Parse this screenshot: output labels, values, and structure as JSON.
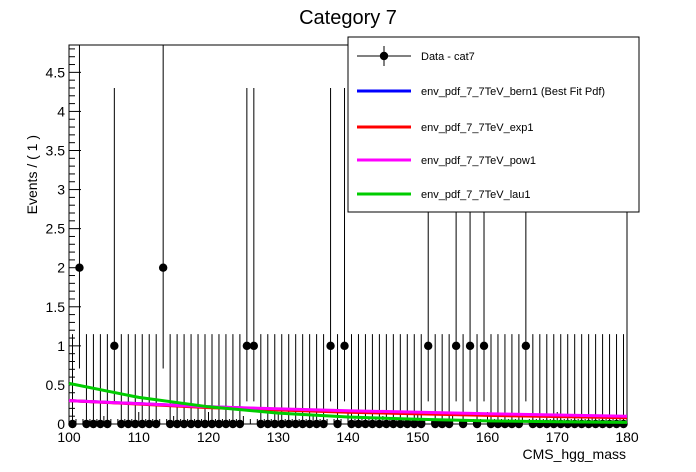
{
  "chart_data": {
    "type": "scatter",
    "title": "Category 7",
    "xlabel": "CMS_hgg_mass",
    "ylabel": "Events / ( 1 )",
    "xlim": [
      100,
      180
    ],
    "ylim": [
      0,
      4.85
    ],
    "x_ticks": [
      100,
      110,
      120,
      130,
      140,
      150,
      160,
      170,
      180
    ],
    "x_tick_labels": [
      "100",
      "110",
      "120",
      "130",
      "140",
      "150",
      "160",
      "170",
      "180"
    ],
    "y_ticks": [
      0,
      0.5,
      1,
      1.5,
      2,
      2.5,
      3,
      3.5,
      4,
      4.5
    ],
    "y_tick_labels": [
      "0",
      "0.5",
      "1",
      "1.5",
      "2",
      "2.5",
      "3",
      "3.5",
      "4",
      "4.5"
    ],
    "legend_position": "top-right",
    "data_series": {
      "name": "Data - cat7",
      "color": "#000000",
      "bin_width": 1,
      "x": [
        100.5,
        101.5,
        102.5,
        103.5,
        104.5,
        105.5,
        106.5,
        107.5,
        108.5,
        109.5,
        110.5,
        111.5,
        112.5,
        113.5,
        114.5,
        115.5,
        116.5,
        117.5,
        118.5,
        119.5,
        120.5,
        121.5,
        122.5,
        123.5,
        124.5,
        125.5,
        126.5,
        127.5,
        128.5,
        129.5,
        130.5,
        131.5,
        132.5,
        133.5,
        134.5,
        135.5,
        136.5,
        137.5,
        138.5,
        139.5,
        140.5,
        141.5,
        142.5,
        143.5,
        144.5,
        145.5,
        146.5,
        147.5,
        148.5,
        149.5,
        150.5,
        151.5,
        152.5,
        153.5,
        154.5,
        155.5,
        156.5,
        157.5,
        158.5,
        159.5,
        160.5,
        161.5,
        162.5,
        163.5,
        164.5,
        165.5,
        166.5,
        167.5,
        168.5,
        169.5,
        170.5,
        171.5,
        172.5,
        173.5,
        174.5,
        175.5,
        176.5,
        177.5,
        178.5,
        179.5
      ],
      "y": [
        0,
        2,
        0,
        0,
        0,
        0,
        1,
        0,
        0,
        0,
        0,
        0,
        0,
        2,
        0,
        0,
        0,
        0,
        0,
        0,
        0,
        0,
        0,
        0,
        0,
        1,
        1,
        0,
        0,
        0,
        0,
        0,
        0,
        0,
        0,
        0,
        0,
        1,
        0,
        1,
        0,
        0,
        0,
        0,
        0,
        0,
        0,
        0,
        0,
        0,
        0,
        1,
        0,
        0,
        0,
        1,
        0,
        1,
        0,
        1,
        0,
        0,
        0,
        0,
        0,
        1,
        0,
        0,
        0,
        0,
        0,
        0,
        0,
        0,
        0,
        0,
        0,
        0,
        0,
        0
      ],
      "errors": {
        "0": [
          0,
          1.15
        ],
        "1": [
          0.71,
          3.3
        ],
        "2": [
          1.29,
          4.64
        ]
      }
    },
    "series": [
      {
        "name": "env_pdf_7_7TeV_bern1 (Best Fit Pdf)",
        "color": "#0000ff",
        "x": [
          100,
          120,
          140,
          160,
          180
        ],
        "y": [
          0.3,
          0.22,
          0.16,
          0.12,
          0.09
        ]
      },
      {
        "name": "env_pdf_7_7TeV_exp1",
        "color": "#ff0000",
        "x": [
          100,
          120,
          140,
          160,
          180
        ],
        "y": [
          0.3,
          0.21,
          0.15,
          0.11,
          0.08
        ]
      },
      {
        "name": "env_pdf_7_7TeV_pow1",
        "color": "#ff00ff",
        "x": [
          100,
          120,
          140,
          160,
          180
        ],
        "y": [
          0.3,
          0.22,
          0.17,
          0.13,
          0.1
        ]
      },
      {
        "name": "env_pdf_7_7TeV_lau1",
        "color": "#00cc00",
        "x": [
          100,
          110,
          120,
          130,
          140,
          150,
          160,
          170,
          180
        ],
        "y": [
          0.52,
          0.34,
          0.22,
          0.14,
          0.09,
          0.06,
          0.04,
          0.03,
          0.02
        ]
      }
    ]
  }
}
